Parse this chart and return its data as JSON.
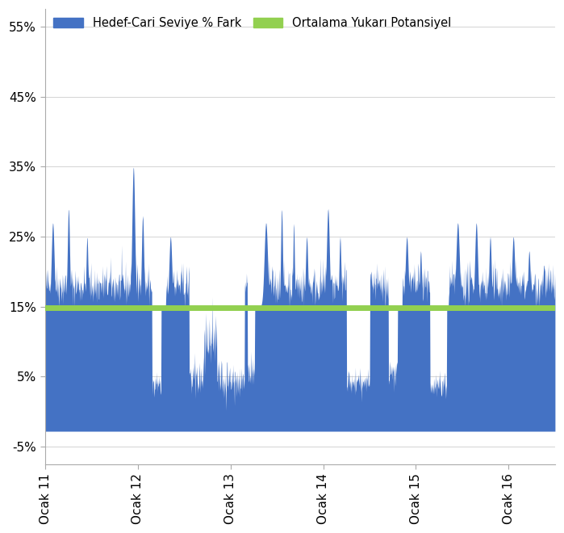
{
  "ylim": [
    -0.075,
    0.575
  ],
  "yticks": [
    -0.05,
    0.05,
    0.15,
    0.25,
    0.35,
    0.45,
    0.55
  ],
  "ytick_labels": [
    "-5%",
    "5%",
    "15%",
    "25%",
    "35%",
    "45%",
    "55%"
  ],
  "xtick_labels": [
    "Ocak 11",
    "Ocak 12",
    "Ocak 13",
    "Ocak 14",
    "Ocak 15",
    "Ocak 16"
  ],
  "bar_color": "#4472C4",
  "line_color": "#92D050",
  "avg_line_value": 0.148,
  "legend_bar_label": "Hedef-Cari Seviye % Fark",
  "legend_line_label": "Ortalama Yukarı Potansiyel",
  "background_color": "#FFFFFF",
  "floor": -0.028,
  "total_years": 5.5,
  "n_points": 1400
}
